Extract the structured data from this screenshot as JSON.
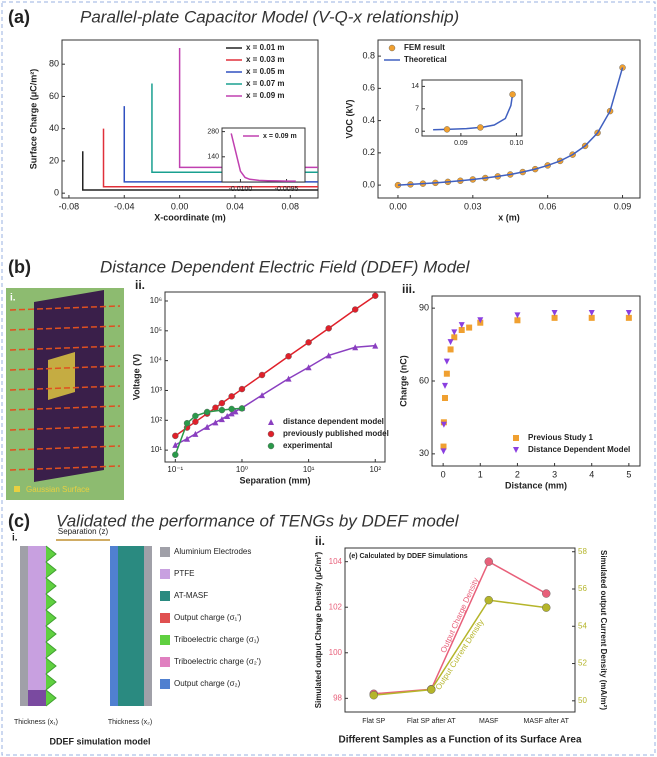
{
  "panels": [
    {
      "label": "(a)",
      "title": "Parallel-plate Capacitor Model (V-Q-x relationship)"
    },
    {
      "label": "(b)",
      "title": "Distance Dependent Electric Field (DDEF) Model"
    },
    {
      "label": "(c)",
      "title": "Validated the performance of TENGs by DDEF model"
    }
  ],
  "panel_b_i": {
    "label": "i.",
    "caption": "Gaussian Surface"
  },
  "panel_c_i": {
    "label": "i.",
    "separation": "Separation (z)",
    "legend": [
      "Aluminium Electrodes",
      "PTFE",
      "AT-MASF",
      "Output charge (σ₁')",
      "Triboelectric charge (σ₁)",
      "Triboelectric charge (σ₂')",
      "Output charge (σ₂)"
    ],
    "thickness_1": "Thickness (x₁)",
    "thickness_2": "Thickness (x₂)",
    "caption": "DDEF simulation model"
  },
  "chart_data": [
    {
      "type": "line",
      "xlabel": "X-coordinate (m)",
      "ylabel": "Surface Charge (μC/m²)",
      "xlim": [
        -0.085,
        0.1
      ],
      "ylim": [
        -3,
        95
      ],
      "xticks": [
        -0.08,
        -0.04,
        {
          "value": 0,
          "label": "0.00"
        },
        0.04,
        0.08
      ],
      "yticks": [
        0,
        20,
        40,
        60,
        80
      ],
      "legend": "upper right",
      "series": [
        {
          "name": "x = 0.01 m",
          "color": "#222222",
          "line": true,
          "x": [
            -0.07,
            -0.07,
            0.1
          ],
          "values": [
            26,
            2,
            2
          ]
        },
        {
          "name": "x = 0.03 m",
          "color": "#e0303a",
          "line": true,
          "x": [
            -0.055,
            -0.055,
            0.1
          ],
          "values": [
            40,
            4,
            4
          ]
        },
        {
          "name": "x = 0.05 m",
          "color": "#3050c0",
          "line": true,
          "x": [
            -0.04,
            -0.04,
            0.1
          ],
          "values": [
            54,
            7,
            7
          ]
        },
        {
          "name": "x = 0.07 m",
          "color": "#1aa090",
          "line": true,
          "x": [
            -0.02,
            -0.02,
            0.1
          ],
          "values": [
            68,
            13,
            13
          ]
        },
        {
          "name": "x = 0.09 m",
          "color": "#c040b0",
          "line": true,
          "x": [
            0,
            0,
            0.1
          ],
          "values": [
            90,
            16,
            16
          ]
        }
      ]
    },
    {
      "type": "line",
      "xlim": [
        -0.0102,
        -0.0093
      ],
      "ylim": [
        0,
        300
      ],
      "xticks": [
        {
          "value": -0.01,
          "label": "-0.0100"
        },
        -0.0095
      ],
      "yticks": [
        140,
        280
      ],
      "legend": "upper right",
      "series": [
        {
          "name": "x = 0.09 m",
          "color": "#c040b0",
          "line": true,
          "x": [
            -0.0101,
            -0.01,
            -0.00995,
            -0.0099,
            -0.0098,
            -0.0097,
            -0.0096,
            -0.0095,
            -0.0094
          ],
          "values": [
            270,
            60,
            25,
            15,
            9,
            7,
            6,
            5,
            5
          ]
        }
      ]
    },
    {
      "type": "line",
      "xlabel": "x (m)",
      "ylabel": "VOC (kV)",
      "xlim": [
        -0.008,
        0.097
      ],
      "ylim": [
        -0.08,
        0.9
      ],
      "xticks": [
        {
          "value": 0,
          "label": "0.00"
        },
        {
          "value": 0.03,
          "label": "0.03"
        },
        {
          "value": 0.06,
          "label": "0.06"
        },
        {
          "value": 0.09,
          "label": "0.09"
        }
      ],
      "yticks": [
        {
          "value": 0,
          "label": "0.0"
        },
        0.2,
        0.4,
        0.6,
        0.8
      ],
      "legend": "upper left",
      "x": [
        0,
        0.005,
        0.01,
        0.015,
        0.02,
        0.025,
        0.03,
        0.035,
        0.04,
        0.045,
        0.05,
        0.055,
        0.06,
        0.065,
        0.07,
        0.075,
        0.08,
        0.085,
        0.09
      ],
      "series": [
        {
          "name": "FEM result",
          "color": "#f0a030",
          "marker": "circle",
          "values": [
            0,
            0.0043,
            0.009,
            0.014,
            0.02,
            0.027,
            0.035,
            0.044,
            0.054,
            0.066,
            0.081,
            0.099,
            0.122,
            0.15,
            0.189,
            0.243,
            0.324,
            0.459,
            0.729
          ]
        },
        {
          "name": "Theoretical",
          "color": "#4060c0",
          "line": true,
          "values": [
            0,
            0.0043,
            0.009,
            0.014,
            0.02,
            0.027,
            0.035,
            0.044,
            0.054,
            0.066,
            0.081,
            0.099,
            0.122,
            0.15,
            0.189,
            0.243,
            0.324,
            0.459,
            0.729
          ]
        }
      ]
    },
    {
      "type": "line",
      "xlim": [
        0.083,
        0.101
      ],
      "ylim": [
        -1.5,
        16
      ],
      "xticks": [
        0.09,
        {
          "value": 0.1,
          "label": "0.10"
        }
      ],
      "yticks": [
        0,
        7,
        14
      ],
      "series": [
        {
          "color": "#4060c0",
          "line": true,
          "x": [
            0.085,
            0.088,
            0.091,
            0.094,
            0.096,
            0.098,
            0.099,
            0.0993
          ],
          "values": [
            0.459,
            0.594,
            0.819,
            1.269,
            1.944,
            3.969,
            8.02,
            11.49
          ]
        },
        {
          "color": "#f0a030",
          "marker": "circle",
          "x": [
            0.0875,
            0.0935,
            0.0993
          ],
          "values": [
            0.567,
            1.165,
            11.49
          ]
        }
      ]
    },
    {
      "type": "line",
      "panel_label": "ii.",
      "xlabel": "Separation (mm)",
      "ylabel": "Voltage (V)",
      "xscale": "log",
      "yscale": "log",
      "xlim": [
        0.07,
        140
      ],
      "ylim": [
        4,
        2000000
      ],
      "xticks": [
        {
          "value": 0.1,
          "label": "10⁻¹"
        },
        {
          "value": 1,
          "label": "10⁰"
        },
        {
          "value": 10,
          "label": "10¹"
        },
        {
          "value": 100,
          "label": "10²"
        }
      ],
      "yticks": [
        {
          "value": 10,
          "label": "10¹"
        },
        {
          "value": 100,
          "label": "10²"
        },
        {
          "value": 1000,
          "label": "10³"
        },
        {
          "value": 10000,
          "label": "10⁴"
        },
        {
          "value": 100000,
          "label": "10⁵"
        },
        {
          "value": 1000000,
          "label": "10⁶"
        }
      ],
      "legend": "lower right",
      "series": [
        {
          "name": "distance dependent model",
          "color": "#8a3fc0",
          "line": true,
          "marker": "triangle",
          "x": [
            0.1,
            0.15,
            0.2,
            0.3,
            0.4,
            0.5,
            0.6,
            0.7,
            0.8,
            1,
            2,
            5,
            10,
            20,
            50,
            100
          ],
          "values": [
            15,
            24,
            35,
            60,
            85,
            110,
            140,
            170,
            200,
            260,
            700,
            2500,
            6000,
            15000,
            28000,
            32000
          ]
        },
        {
          "name": "previously published model",
          "color": "#e0202a",
          "line": true,
          "marker": "circle",
          "x": [
            0.1,
            0.15,
            0.2,
            0.3,
            0.4,
            0.5,
            0.7,
            1,
            2,
            5,
            10,
            20,
            50,
            100
          ],
          "values": [
            30,
            57,
            89,
            167,
            264,
            376,
            635,
            1114,
            3300,
            14000,
            41000,
            121000,
            517000,
            1500000
          ]
        },
        {
          "name": "experimental",
          "color": "#2a9a4a",
          "line": true,
          "marker": "circle",
          "x": [
            0.1,
            0.15,
            0.2,
            0.3,
            0.5,
            0.7,
            1
          ],
          "values": [
            7,
            80,
            140,
            190,
            220,
            240,
            250
          ]
        }
      ]
    },
    {
      "type": "scatter",
      "panel_label": "iii.",
      "xlabel": "Distance (mm)",
      "ylabel": "Charge (nC)",
      "xlim": [
        -0.3,
        5.3
      ],
      "ylim": [
        25,
        95
      ],
      "xticks": [
        0,
        1,
        2,
        3,
        4,
        5
      ],
      "yticks": [
        30,
        60,
        90
      ],
      "legend": "lower right",
      "series": [
        {
          "name": "Previous Study 1",
          "color": "#f0a030",
          "marker": "square",
          "x": [
            0.01,
            0.02,
            0.05,
            0.1,
            0.2,
            0.3,
            0.5,
            0.7,
            1,
            2,
            3,
            4,
            5
          ],
          "values": [
            33,
            43,
            53,
            63,
            73,
            78,
            81,
            82,
            84,
            85,
            86,
            86,
            86
          ]
        },
        {
          "name": "Distance Dependent Model",
          "color": "#8a3fe0",
          "marker": "down-triangle",
          "x": [
            0.01,
            0.02,
            0.05,
            0.1,
            0.2,
            0.3,
            0.5,
            1,
            2,
            3,
            4,
            5
          ],
          "values": [
            31,
            42,
            58,
            68,
            76,
            80,
            83,
            85,
            87,
            88,
            88,
            88
          ]
        }
      ]
    },
    {
      "type": "line",
      "panel_label": "ii.",
      "annotation": "(e) Calculated by DDEF Simulations",
      "xlabel": "Different Samples as a Function of its Surface Area",
      "ylabel": "Simulated output Charge Density (μC/m²)",
      "y2label": "Simulated output Current Density (mA/m²)",
      "categories": [
        "Flat SP",
        "Flat SP after AT",
        "MASF",
        "MASF after AT"
      ],
      "ylim": [
        97.4,
        104.6
      ],
      "yticks": [
        98,
        100,
        102,
        104
      ],
      "y2lim": [
        49.4,
        58.2
      ],
      "y2ticks": [
        50,
        52,
        54,
        56,
        58
      ],
      "legend": "on-curve",
      "series": [
        {
          "name": "Output Charge Density",
          "color": "#e8607a",
          "line": true,
          "marker": "circle",
          "values": [
            98.2,
            98.4,
            104.0,
            102.6
          ]
        },
        {
          "name": "Output Current Density",
          "color": "#b5b52a",
          "line": true,
          "marker": "circle",
          "axis": "y2",
          "values": [
            50.3,
            50.6,
            55.4,
            55.0
          ]
        }
      ]
    }
  ]
}
